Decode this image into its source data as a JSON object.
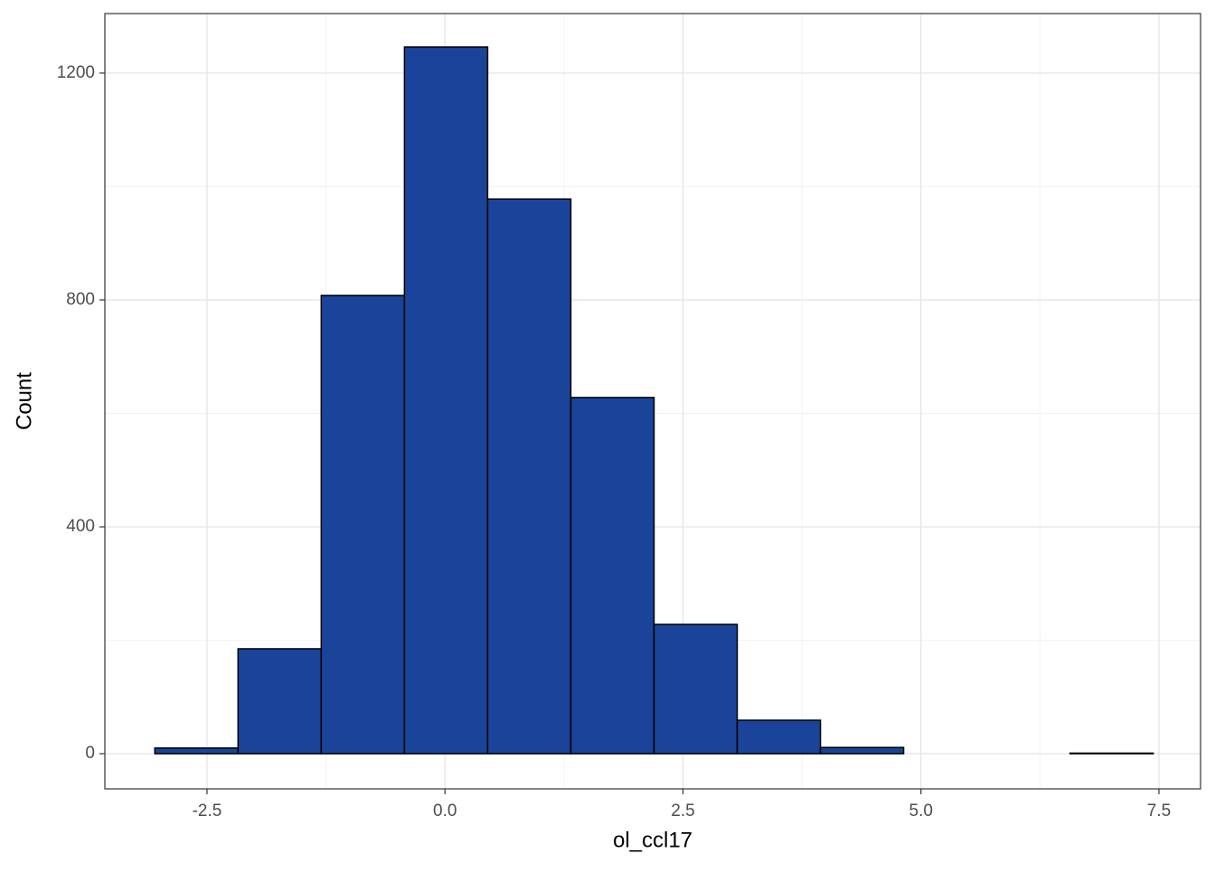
{
  "chart_data": {
    "type": "histogram",
    "x_label": "ol_ccl17",
    "y_label": "Count",
    "bins": [
      -3.048,
      -2.174,
      -1.3,
      -0.426,
      0.448,
      1.322,
      2.196,
      3.07,
      3.944,
      4.818,
      5.692,
      6.566,
      7.44
    ],
    "values": [
      10,
      185,
      808,
      1246,
      978,
      628,
      228,
      59,
      11,
      0,
      0,
      1
    ],
    "color": "#1a4499",
    "edge_color": "#000000",
    "xlim": [
      -3.573,
      7.937
    ],
    "ylim": [
      -62,
      1305
    ],
    "xticks": [
      {
        "value": -2.5,
        "label": "-2.5"
      },
      {
        "value": 0,
        "label": "0.0"
      },
      {
        "value": 2.5,
        "label": "2.5"
      },
      {
        "value": 5,
        "label": "5.0"
      },
      {
        "value": 7.5,
        "label": "7.5"
      }
    ],
    "yticks": [
      0,
      400,
      800,
      1200
    ],
    "grid": true
  }
}
